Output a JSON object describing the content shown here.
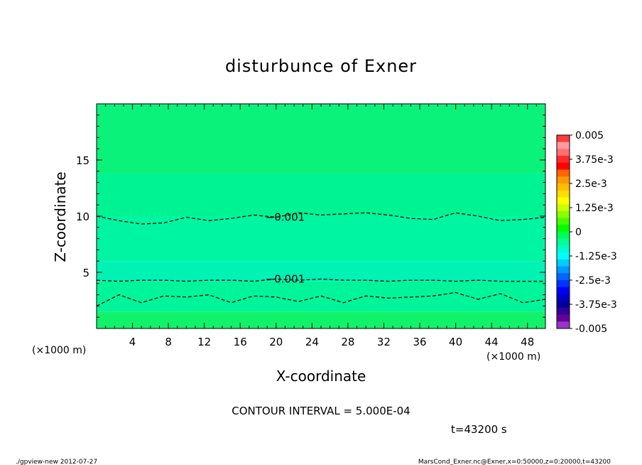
{
  "chart_data": {
    "type": "heatmap",
    "title": "disturbunce of Exner",
    "xlabel": "X-coordinate",
    "ylabel": "Z-coordinate",
    "x_unit": "(×1000 m)",
    "y_unit": "(×1000 m)",
    "xlim": [
      0,
      50
    ],
    "ylim": [
      0,
      20
    ],
    "x_ticks": [
      4,
      8,
      12,
      16,
      20,
      24,
      28,
      32,
      36,
      40,
      44,
      48
    ],
    "y_ticks": [
      5,
      10,
      15
    ],
    "contour_interval_text": "CONTOUR INTERVAL = 5.000E-04",
    "time_text": "t=43200 s",
    "colorbar": {
      "range": [
        -0.005,
        0.005
      ],
      "labels": [
        "0.005",
        "3.75e-3",
        "2.5e-3",
        "1.25e-3",
        "0",
        "-1.25e-3",
        "-2.5e-3",
        "-3.75e-3",
        "-0.005"
      ],
      "colors": [
        "#ff3b3b",
        "#ff9aa0",
        "#ff7070",
        "#ff2a2a",
        "#ff0000",
        "#ff6600",
        "#ff9900",
        "#ffbb00",
        "#ffdd00",
        "#ffff00",
        "#ccff00",
        "#88ff00",
        "#44ff00",
        "#00ff00",
        "#00ff55",
        "#00ff99",
        "#00ffcc",
        "#00ffff",
        "#00ccff",
        "#0099ff",
        "#0066ff",
        "#0033ff",
        "#0000ff",
        "#0000cc",
        "#000099",
        "#330099",
        "#660099",
        "#9933cc"
      ]
    },
    "bands": [
      {
        "z_from": 0,
        "z_to": 1.5,
        "value": 0.00025,
        "color": "#11f26a"
      },
      {
        "z_from": 1.5,
        "z_to": 4.2,
        "value": -0.0008,
        "color": "#00f59a"
      },
      {
        "z_from": 4.2,
        "z_to": 6.0,
        "value": -0.0012,
        "color": "#00f2b4"
      },
      {
        "z_from": 6.0,
        "z_to": 10.0,
        "value": -0.0009,
        "color": "#00f5a2"
      },
      {
        "z_from": 10.0,
        "z_to": 13.8,
        "value": -0.0006,
        "color": "#00f392"
      },
      {
        "z_from": 13.8,
        "z_to": 20,
        "value": -0.0002,
        "color": "#0af27a"
      }
    ],
    "contours": [
      {
        "level": "-0.001",
        "label": "−0.001",
        "label_x": 21,
        "z": [
          10.0,
          9.6,
          9.3,
          9.4,
          9.9,
          9.6,
          9.8,
          10.1,
          9.9,
          10.3,
          10.1,
          10.2,
          10.3,
          10.1,
          9.8,
          9.7,
          10.3,
          10.0,
          9.6,
          9.7,
          9.9
        ]
      },
      {
        "level": "-0.001",
        "label": "−0.001",
        "label_x": 21,
        "z": [
          4.3,
          4.2,
          4.3,
          4.3,
          4.2,
          4.3,
          4.3,
          4.2,
          4.4,
          4.3,
          4.4,
          4.3,
          4.3,
          4.2,
          4.3,
          4.3,
          4.2,
          4.3,
          4.2,
          4.2,
          4.2
        ]
      },
      {
        "level": "-0.0005",
        "label": "",
        "label_x": 0,
        "z": [
          2.0,
          3.0,
          2.3,
          2.9,
          2.8,
          3.0,
          2.3,
          2.9,
          2.8,
          2.4,
          2.9,
          2.3,
          2.9,
          2.7,
          2.8,
          2.9,
          3.2,
          2.6,
          3.1,
          2.3,
          2.6
        ]
      }
    ]
  },
  "footer": {
    "left": "./gpview-new   2012-07-27",
    "right": "MarsCond_Exner.nc@Exner,x=0:50000,z=0:20000,t=43200"
  }
}
